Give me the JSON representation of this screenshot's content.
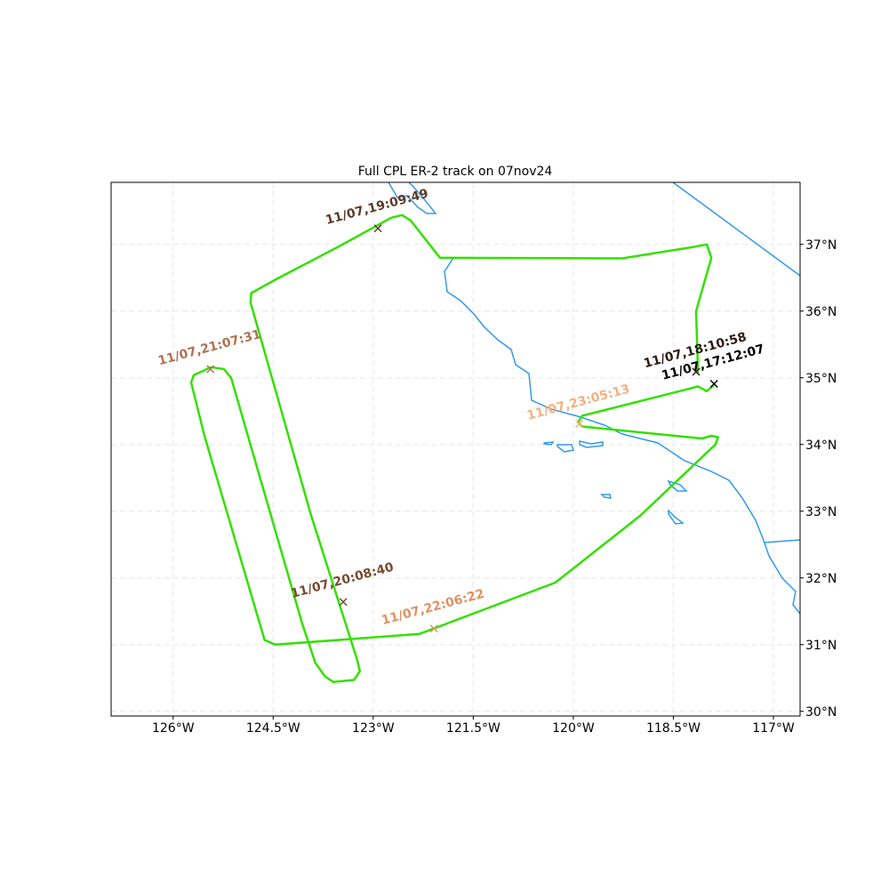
{
  "chart_data": {
    "type": "map",
    "title": "Full CPL ER-2 track on 07nov24",
    "xlim": [
      -126.93,
      -116.6
    ],
    "ylim": [
      29.93,
      37.93
    ],
    "xticks": [
      {
        "value": -126,
        "label": "126°W"
      },
      {
        "value": -124.5,
        "label": "124.5°W"
      },
      {
        "value": -123,
        "label": "123°W"
      },
      {
        "value": -121.5,
        "label": "121.5°W"
      },
      {
        "value": -120,
        "label": "120°W"
      },
      {
        "value": -118.5,
        "label": "118.5°W"
      },
      {
        "value": -117,
        "label": "117°W"
      }
    ],
    "yticks": [
      {
        "value": 30,
        "label": "30°N"
      },
      {
        "value": 31,
        "label": "31°N"
      },
      {
        "value": 32,
        "label": "32°N"
      },
      {
        "value": 33,
        "label": "33°N"
      },
      {
        "value": 34,
        "label": "34°N"
      },
      {
        "value": 35,
        "label": "35°N"
      },
      {
        "value": 36,
        "label": "36°N"
      },
      {
        "value": 37,
        "label": "37°N"
      }
    ],
    "grid": true,
    "track": {
      "color": "#33e000",
      "lon": [
        -118.13,
        -118.16,
        -117.93,
        -118.0,
        -118.2,
        -119.27,
        -122.0,
        -122.44,
        -122.57,
        -122.73,
        -123.53,
        -124.47,
        -124.83,
        -124.84,
        -123.93,
        -123.24,
        -123.2,
        -123.29,
        -123.6,
        -123.73,
        -123.87,
        -124.07,
        -125.13,
        -125.24,
        -125.43,
        -125.69,
        -125.73,
        -125.53,
        -124.63,
        -124.47,
        -122.31,
        -120.27,
        -119.0,
        -117.87,
        -117.83,
        -117.93,
        -118.07,
        -119.87,
        -119.93,
        -119.87,
        -118.13,
        -118.0,
        -117.89
      ],
      "lat": [
        35.07,
        36.0,
        36.8,
        37.0,
        36.96,
        36.79,
        36.8,
        37.36,
        37.44,
        37.4,
        36.96,
        36.47,
        36.27,
        36.13,
        32.93,
        30.77,
        30.6,
        30.47,
        30.44,
        30.53,
        30.73,
        31.33,
        35.0,
        35.13,
        35.16,
        35.04,
        34.93,
        34.13,
        31.07,
        31.0,
        31.16,
        31.93,
        32.93,
        34.0,
        34.11,
        34.13,
        34.09,
        34.27,
        34.33,
        34.43,
        34.87,
        34.8,
        34.89
      ]
    },
    "markers": [
      {
        "label": "11/07,17:12:07",
        "lon": -117.89,
        "lat": 34.91,
        "color": "#000000"
      },
      {
        "label": "11/07,18:10:58",
        "lon": -118.16,
        "lat": 35.09,
        "color": "#2a1a10"
      },
      {
        "label": "11/07,19:09:49",
        "lon": -122.93,
        "lat": 37.24,
        "color": "#5a3a28"
      },
      {
        "label": "11/07,20:08:40",
        "lon": -123.45,
        "lat": 31.64,
        "color": "#7a4a30"
      },
      {
        "label": "11/07,21:07:31",
        "lon": -125.44,
        "lat": 35.13,
        "color": "#b07050"
      },
      {
        "label": "11/07,22:06:22",
        "lon": -122.09,
        "lat": 31.24,
        "color": "#e09060"
      },
      {
        "label": "11/07,23:05:13",
        "lon": -119.91,
        "lat": 34.31,
        "color": "#f5b080"
      }
    ]
  }
}
